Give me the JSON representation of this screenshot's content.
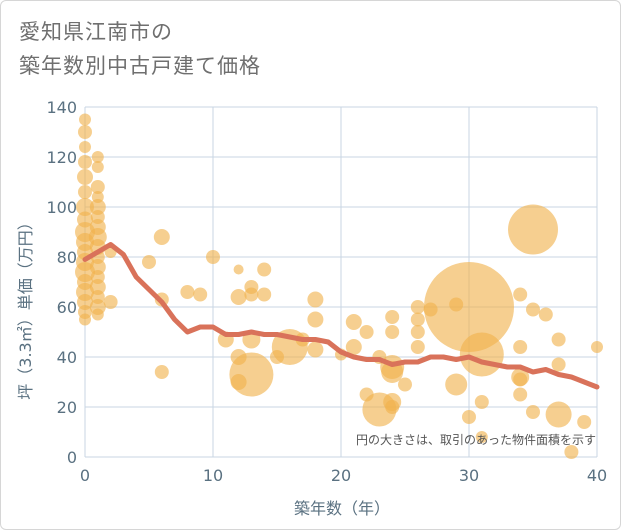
{
  "title": {
    "line1": "愛知県江南市の",
    "line2": "築年数別中古戸建て価格"
  },
  "note": "円の大きさは、取引のあった物件面積を示す",
  "colors": {
    "bubble": "#f0b24c",
    "line": "#d9725a",
    "grid": "#c9d6e3",
    "axis_text": "#5a7181"
  },
  "chart_data": {
    "type": "scatter",
    "xlabel": "築年数（年）",
    "ylabel": "坪（3.3㎡）単価（万円）",
    "xlim": [
      0,
      40
    ],
    "ylim": [
      0,
      140
    ],
    "xticks": [
      0,
      10,
      20,
      30,
      40
    ],
    "yticks": [
      0,
      20,
      40,
      60,
      80,
      100,
      120,
      140
    ],
    "bubbles": [
      {
        "x": 0,
        "y": 135,
        "r": 6
      },
      {
        "x": 0,
        "y": 130,
        "r": 7
      },
      {
        "x": 0,
        "y": 124,
        "r": 6
      },
      {
        "x": 0,
        "y": 118,
        "r": 7
      },
      {
        "x": 0,
        "y": 112,
        "r": 8
      },
      {
        "x": 0,
        "y": 106,
        "r": 7
      },
      {
        "x": 0,
        "y": 100,
        "r": 9
      },
      {
        "x": 0,
        "y": 95,
        "r": 8
      },
      {
        "x": 0,
        "y": 90,
        "r": 10
      },
      {
        "x": 0,
        "y": 86,
        "r": 9
      },
      {
        "x": 0,
        "y": 82,
        "r": 8
      },
      {
        "x": 0,
        "y": 78,
        "r": 9
      },
      {
        "x": 0,
        "y": 74,
        "r": 10
      },
      {
        "x": 0,
        "y": 70,
        "r": 8
      },
      {
        "x": 0,
        "y": 66,
        "r": 9
      },
      {
        "x": 0,
        "y": 62,
        "r": 8
      },
      {
        "x": 0,
        "y": 58,
        "r": 7
      },
      {
        "x": 0,
        "y": 55,
        "r": 6
      },
      {
        "x": 1,
        "y": 120,
        "r": 6
      },
      {
        "x": 1,
        "y": 116,
        "r": 6
      },
      {
        "x": 1,
        "y": 108,
        "r": 7
      },
      {
        "x": 1,
        "y": 104,
        "r": 6
      },
      {
        "x": 1,
        "y": 100,
        "r": 8
      },
      {
        "x": 1,
        "y": 96,
        "r": 7
      },
      {
        "x": 1,
        "y": 92,
        "r": 8
      },
      {
        "x": 1,
        "y": 88,
        "r": 9
      },
      {
        "x": 1,
        "y": 84,
        "r": 8
      },
      {
        "x": 1,
        "y": 80,
        "r": 7
      },
      {
        "x": 1,
        "y": 76,
        "r": 8
      },
      {
        "x": 1,
        "y": 72,
        "r": 7
      },
      {
        "x": 1,
        "y": 68,
        "r": 8
      },
      {
        "x": 1,
        "y": 64,
        "r": 7
      },
      {
        "x": 1,
        "y": 60,
        "r": 8
      },
      {
        "x": 1,
        "y": 57,
        "r": 6
      },
      {
        "x": 2,
        "y": 62,
        "r": 7
      },
      {
        "x": 2,
        "y": 82,
        "r": 6
      },
      {
        "x": 5,
        "y": 78,
        "r": 7
      },
      {
        "x": 6,
        "y": 88,
        "r": 8
      },
      {
        "x": 6,
        "y": 63,
        "r": 7
      },
      {
        "x": 6,
        "y": 34,
        "r": 7
      },
      {
        "x": 8,
        "y": 66,
        "r": 7
      },
      {
        "x": 9,
        "y": 65,
        "r": 7
      },
      {
        "x": 10,
        "y": 80,
        "r": 7
      },
      {
        "x": 11,
        "y": 47,
        "r": 8
      },
      {
        "x": 12,
        "y": 75,
        "r": 5
      },
      {
        "x": 12,
        "y": 64,
        "r": 8
      },
      {
        "x": 12,
        "y": 40,
        "r": 8
      },
      {
        "x": 12,
        "y": 30,
        "r": 8
      },
      {
        "x": 13,
        "y": 68,
        "r": 7
      },
      {
        "x": 13,
        "y": 65,
        "r": 7
      },
      {
        "x": 13,
        "y": 47,
        "r": 9
      },
      {
        "x": 13,
        "y": 33,
        "r": 22
      },
      {
        "x": 14,
        "y": 75,
        "r": 7
      },
      {
        "x": 14,
        "y": 65,
        "r": 7
      },
      {
        "x": 15,
        "y": 40,
        "r": 7
      },
      {
        "x": 16,
        "y": 44,
        "r": 18
      },
      {
        "x": 17,
        "y": 47,
        "r": 7
      },
      {
        "x": 18,
        "y": 63,
        "r": 8
      },
      {
        "x": 18,
        "y": 55,
        "r": 8
      },
      {
        "x": 18,
        "y": 43,
        "r": 8
      },
      {
        "x": 20,
        "y": 41,
        "r": 6
      },
      {
        "x": 21,
        "y": 54,
        "r": 8
      },
      {
        "x": 21,
        "y": 44,
        "r": 8
      },
      {
        "x": 22,
        "y": 50,
        "r": 7
      },
      {
        "x": 22,
        "y": 25,
        "r": 7
      },
      {
        "x": 23,
        "y": 19,
        "r": 17
      },
      {
        "x": 23,
        "y": 40,
        "r": 7
      },
      {
        "x": 24,
        "y": 56,
        "r": 7
      },
      {
        "x": 24,
        "y": 50,
        "r": 7
      },
      {
        "x": 24,
        "y": 36,
        "r": 12
      },
      {
        "x": 24,
        "y": 34,
        "r": 11
      },
      {
        "x": 24,
        "y": 22,
        "r": 9
      },
      {
        "x": 24,
        "y": 20,
        "r": 7
      },
      {
        "x": 25,
        "y": 29,
        "r": 7
      },
      {
        "x": 26,
        "y": 60,
        "r": 7
      },
      {
        "x": 26,
        "y": 55,
        "r": 7
      },
      {
        "x": 26,
        "y": 50,
        "r": 7
      },
      {
        "x": 26,
        "y": 44,
        "r": 7
      },
      {
        "x": 27,
        "y": 59,
        "r": 7
      },
      {
        "x": 29,
        "y": 61,
        "r": 7
      },
      {
        "x": 29,
        "y": 29,
        "r": 11
      },
      {
        "x": 30,
        "y": 60,
        "r": 45
      },
      {
        "x": 30,
        "y": 16,
        "r": 7
      },
      {
        "x": 31,
        "y": 41,
        "r": 22
      },
      {
        "x": 31,
        "y": 22,
        "r": 7
      },
      {
        "x": 31,
        "y": 8,
        "r": 6
      },
      {
        "x": 34,
        "y": 65,
        "r": 7
      },
      {
        "x": 34,
        "y": 44,
        "r": 7
      },
      {
        "x": 34,
        "y": 32,
        "r": 9
      },
      {
        "x": 34,
        "y": 31,
        "r": 7
      },
      {
        "x": 34,
        "y": 25,
        "r": 7
      },
      {
        "x": 35,
        "y": 91,
        "r": 25
      },
      {
        "x": 35,
        "y": 59,
        "r": 7
      },
      {
        "x": 35,
        "y": 18,
        "r": 7
      },
      {
        "x": 36,
        "y": 57,
        "r": 7
      },
      {
        "x": 37,
        "y": 47,
        "r": 7
      },
      {
        "x": 37,
        "y": 37,
        "r": 7
      },
      {
        "x": 37,
        "y": 17,
        "r": 13
      },
      {
        "x": 38,
        "y": 2,
        "r": 7
      },
      {
        "x": 39,
        "y": 14,
        "r": 7
      },
      {
        "x": 40,
        "y": 44,
        "r": 6
      }
    ],
    "trend": {
      "x": [
        0,
        1,
        2,
        3,
        4,
        5,
        6,
        7,
        8,
        9,
        10,
        11,
        12,
        13,
        14,
        15,
        16,
        17,
        18,
        19,
        20,
        21,
        22,
        23,
        24,
        25,
        26,
        27,
        28,
        29,
        30,
        31,
        32,
        33,
        34,
        35,
        36,
        37,
        38,
        39,
        40
      ],
      "y": [
        79,
        82,
        85,
        81,
        72,
        67,
        62,
        55,
        50,
        52,
        52,
        49,
        49,
        50,
        49,
        49,
        48,
        47,
        47,
        46,
        42,
        40,
        39,
        39,
        37,
        38,
        38,
        40,
        40,
        39,
        40,
        38,
        37,
        36,
        36,
        34,
        35,
        33,
        32,
        30,
        28
      ]
    }
  }
}
